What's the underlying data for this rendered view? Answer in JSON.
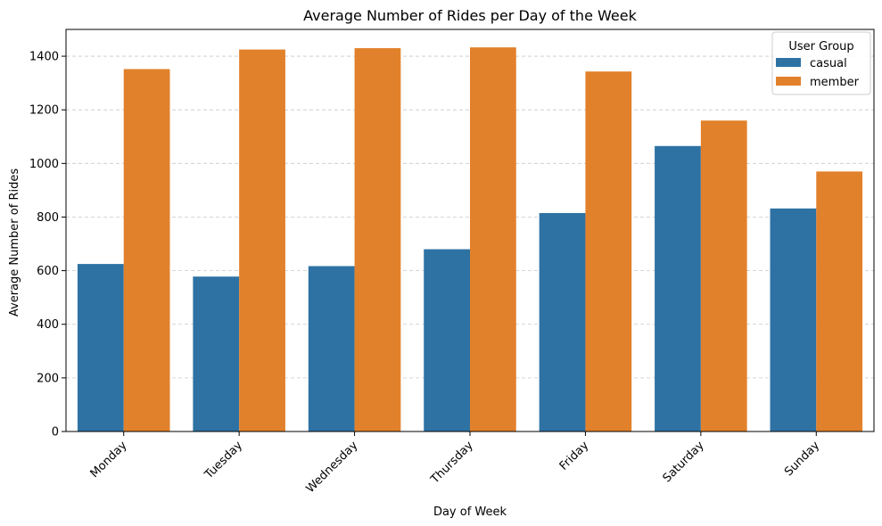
{
  "chart_data": {
    "type": "bar",
    "title": "Average Number of Rides per Day of the Week",
    "xlabel": "Day of Week",
    "ylabel": "Average Number of Rides",
    "categories": [
      "Monday",
      "Tuesday",
      "Wednesday",
      "Thursday",
      "Friday",
      "Saturday",
      "Sunday"
    ],
    "series": [
      {
        "name": "casual",
        "color": "#2e72a4",
        "values": [
          625,
          578,
          617,
          680,
          815,
          1065,
          832
        ]
      },
      {
        "name": "member",
        "color": "#e2812b",
        "values": [
          1352,
          1425,
          1430,
          1433,
          1343,
          1160,
          970
        ]
      }
    ],
    "ylim": [
      0,
      1500
    ],
    "yticks": [
      0,
      200,
      400,
      600,
      800,
      1000,
      1200,
      1400
    ],
    "grid": "y-dashed",
    "legend": {
      "title": "User Group",
      "position": "top-right"
    }
  }
}
